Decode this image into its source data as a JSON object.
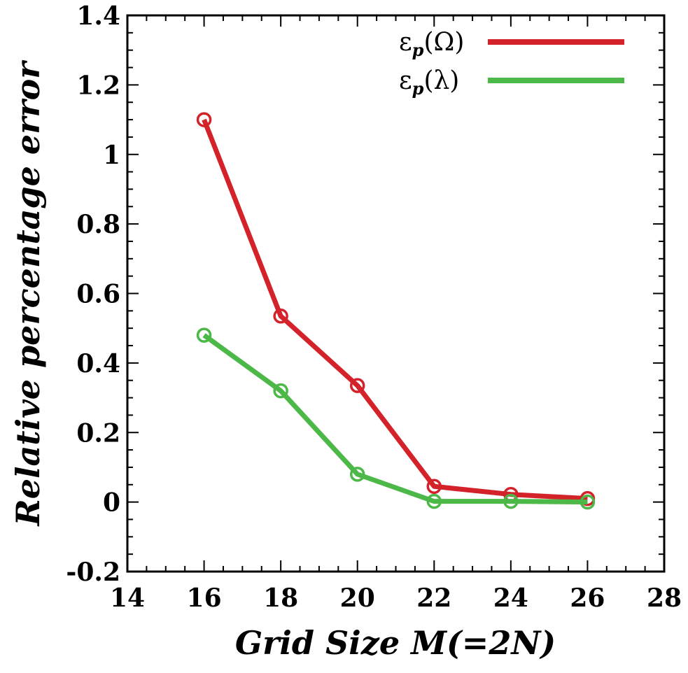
{
  "chart_data": {
    "type": "line",
    "xlabel": "Grid Size M(=2N)",
    "ylabel": "Relative percentage error",
    "xlim": [
      14,
      28
    ],
    "ylim": [
      -0.2,
      1.4
    ],
    "xticks": [
      14,
      16,
      18,
      20,
      22,
      24,
      26,
      28
    ],
    "yticks": [
      -0.2,
      0,
      0.2,
      0.4,
      0.6,
      0.8,
      1,
      1.2,
      1.4
    ],
    "xtick_labels": [
      "14",
      "16",
      "18",
      "20",
      "22",
      "24",
      "26",
      "28"
    ],
    "ytick_labels": [
      "-0.2",
      "0",
      "0.2",
      "0.4",
      "0.6",
      "0.8",
      "1",
      "1.2",
      "1.4"
    ],
    "legend_position": "top-right",
    "series": [
      {
        "name": "εp(Ω)",
        "legend_main": "ε",
        "legend_sub": "p",
        "legend_arg": "(Ω)",
        "color": "#d3222a",
        "marker": "open-circle",
        "x": [
          16,
          18,
          20,
          22,
          24,
          26
        ],
        "y": [
          1.1,
          0.535,
          0.335,
          0.045,
          0.022,
          0.01
        ]
      },
      {
        "name": "εp(λ)",
        "legend_main": "ε",
        "legend_sub": "p",
        "legend_arg": "(λ)",
        "color": "#4cb848",
        "marker": "open-circle",
        "x": [
          16,
          18,
          20,
          22,
          24,
          26
        ],
        "y": [
          0.48,
          0.32,
          0.08,
          0.002,
          0.002,
          0.0
        ]
      }
    ]
  }
}
